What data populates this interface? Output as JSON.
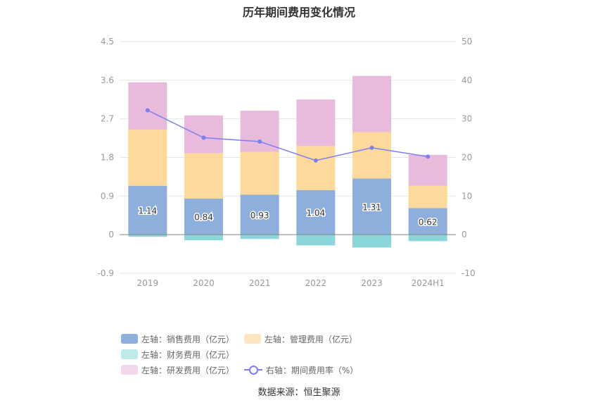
{
  "title": "历年期间费用变化情况",
  "source": "数据来源：恒生聚源",
  "legend": {
    "sales": "左轴：销售费用（亿元）",
    "mgmt": "左轴：管理费用（亿元）",
    "fin": "左轴：财务费用（亿元）",
    "rd": "左轴：研发费用（亿元）",
    "rate": "右轴：期间费用率（%）"
  },
  "colors": {
    "sales": "#8eaedc",
    "mgmt": "#fdd99b",
    "fin": "#8ad6d8",
    "rd": "#e8badc",
    "rate": "#7b7ff0",
    "fin_legend": "#bfeaea",
    "mgmt_legend": "#fde7c2",
    "rd_legend": "#f3d8ec"
  },
  "chart_data": {
    "type": "bar",
    "stacked": true,
    "categories": [
      "2019",
      "2020",
      "2021",
      "2022",
      "2023",
      "2024H1"
    ],
    "left_axis": {
      "min": -0.9,
      "max": 4.5,
      "ticks": [
        "4.5",
        "3.6",
        "2.7",
        "1.8",
        "0.9",
        "0",
        "-0.9"
      ]
    },
    "right_axis": {
      "min": -10,
      "max": 50,
      "ticks": [
        "50",
        "40",
        "30",
        "20",
        "10",
        "0",
        "-10"
      ]
    },
    "series": [
      {
        "name": "左轴：销售费用（亿元）",
        "key": "sales",
        "axis": "left",
        "values": [
          1.14,
          0.84,
          0.93,
          1.04,
          1.31,
          0.62
        ],
        "labels": [
          "1.14",
          "0.84",
          "0.93",
          "1.04",
          "1.31",
          "0.62"
        ]
      },
      {
        "name": "左轴：管理费用（亿元）",
        "key": "mgmt",
        "axis": "left",
        "values": [
          1.31,
          1.06,
          1.0,
          1.03,
          1.08,
          0.52
        ]
      },
      {
        "name": "左轴：财务费用（亿元）",
        "key": "fin",
        "axis": "left",
        "values": [
          -0.05,
          -0.13,
          -0.1,
          -0.25,
          -0.3,
          -0.15
        ]
      },
      {
        "name": "左轴：研发费用（亿元）",
        "key": "rd",
        "axis": "left",
        "values": [
          1.1,
          0.88,
          0.96,
          1.08,
          1.31,
          0.72
        ]
      },
      {
        "name": "右轴：期间费用率（%）",
        "key": "rate",
        "axis": "right",
        "type": "line",
        "values": [
          32.2,
          25.1,
          24.1,
          19.2,
          22.5,
          20.2
        ]
      }
    ],
    "legend_position": "bottom",
    "grid": true
  }
}
